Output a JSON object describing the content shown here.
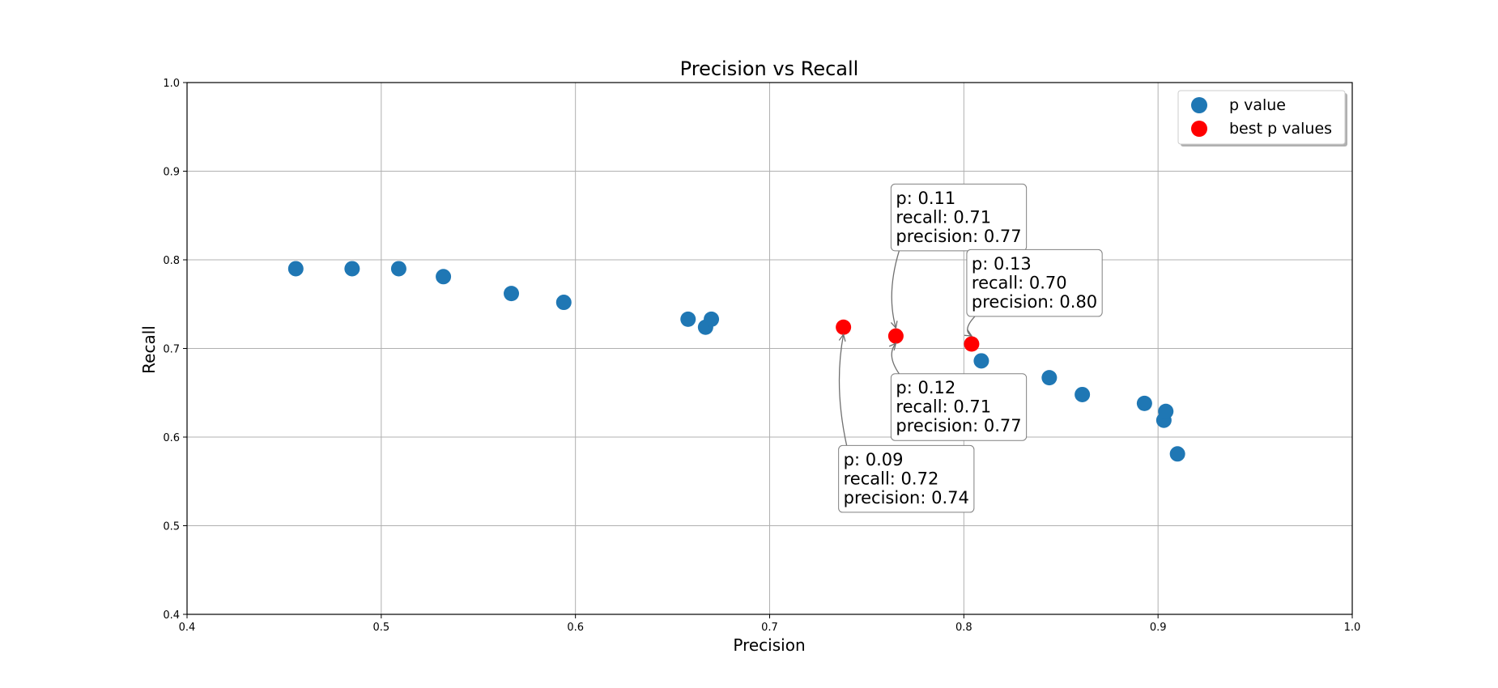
{
  "chart_data": {
    "type": "scatter",
    "title": "Precision vs Recall",
    "xlabel": "Precision",
    "ylabel": "Recall",
    "xlim": [
      0.4,
      1.0
    ],
    "ylim": [
      0.4,
      1.0
    ],
    "xticks": [
      "0.4",
      "0.5",
      "0.6",
      "0.7",
      "0.8",
      "0.9",
      "1.0"
    ],
    "yticks": [
      "0.4",
      "0.5",
      "0.6",
      "0.7",
      "0.8",
      "0.9",
      "1.0"
    ],
    "grid": true,
    "legend_position": "top-right",
    "series": [
      {
        "name": "p value",
        "color": "#1f77b4",
        "points": [
          {
            "x": 0.456,
            "y": 0.79
          },
          {
            "x": 0.485,
            "y": 0.79
          },
          {
            "x": 0.509,
            "y": 0.79
          },
          {
            "x": 0.532,
            "y": 0.781
          },
          {
            "x": 0.567,
            "y": 0.762
          },
          {
            "x": 0.594,
            "y": 0.752
          },
          {
            "x": 0.658,
            "y": 0.733
          },
          {
            "x": 0.667,
            "y": 0.724
          },
          {
            "x": 0.67,
            "y": 0.733
          },
          {
            "x": 0.809,
            "y": 0.686
          },
          {
            "x": 0.844,
            "y": 0.667
          },
          {
            "x": 0.861,
            "y": 0.648
          },
          {
            "x": 0.893,
            "y": 0.638
          },
          {
            "x": 0.903,
            "y": 0.619
          },
          {
            "x": 0.904,
            "y": 0.629
          },
          {
            "x": 0.91,
            "y": 0.581
          }
        ]
      },
      {
        "name": "best p values",
        "color": "#ff0000",
        "points": [
          {
            "x": 0.738,
            "y": 0.724
          },
          {
            "x": 0.765,
            "y": 0.714
          },
          {
            "x": 0.804,
            "y": 0.705
          }
        ]
      }
    ],
    "annotations": [
      {
        "lines": [
          "p: 0.11",
          "recall: 0.71",
          "precision: 0.77"
        ],
        "target": {
          "x": 0.765,
          "y": 0.714
        },
        "anchor": {
          "x": 0.765,
          "y": 0.88
        }
      },
      {
        "lines": [
          "p: 0.13",
          "recall: 0.70",
          "precision: 0.80"
        ],
        "target": {
          "x": 0.804,
          "y": 0.705
        },
        "anchor": {
          "x": 0.804,
          "y": 0.806
        }
      },
      {
        "lines": [
          "p: 0.12",
          "recall: 0.71",
          "precision: 0.77"
        ],
        "target": {
          "x": 0.765,
          "y": 0.714
        },
        "anchor": {
          "x": 0.765,
          "y": 0.666
        }
      },
      {
        "lines": [
          "p: 0.09",
          "recall: 0.72",
          "precision: 0.74"
        ],
        "target": {
          "x": 0.738,
          "y": 0.724
        },
        "anchor": {
          "x": 0.738,
          "y": 0.585
        }
      }
    ]
  }
}
